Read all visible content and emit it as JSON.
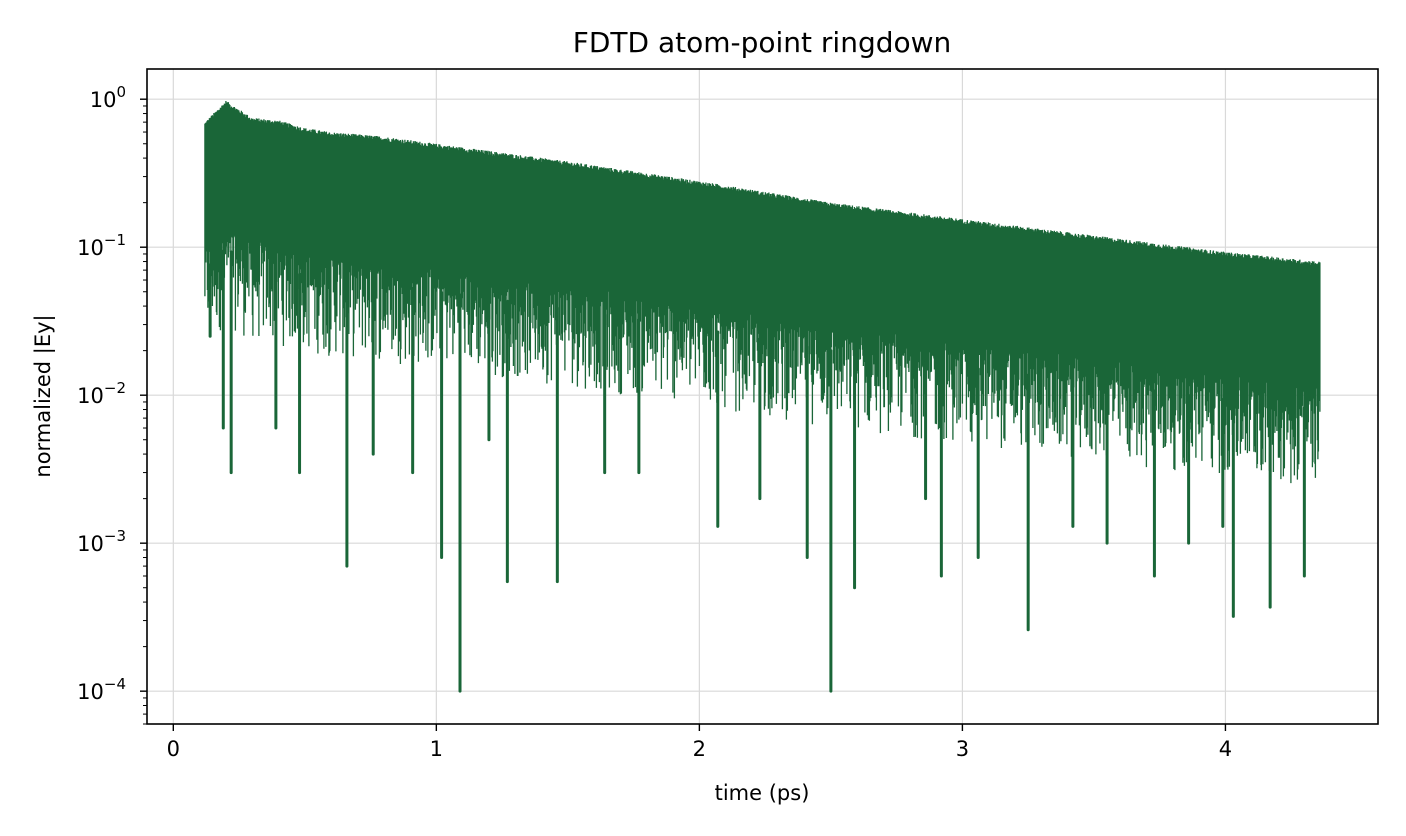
{
  "chart_data": {
    "type": "line",
    "title": "FDTD atom-point ringdown",
    "xlabel": "time (ps)",
    "ylabel": "normalized |Ey|",
    "yscale": "log",
    "xlim": [
      -0.1,
      4.58
    ],
    "ylim": [
      6e-05,
      1.6
    ],
    "grid": true,
    "x_ticks": [
      {
        "value": 0,
        "label": "0"
      },
      {
        "value": 1,
        "label": "1"
      },
      {
        "value": 2,
        "label": "2"
      },
      {
        "value": 3,
        "label": "3"
      },
      {
        "value": 4,
        "label": "4"
      }
    ],
    "y_ticks": [
      {
        "value": 1,
        "base": "10",
        "exponent": "0"
      },
      {
        "value": 0.1,
        "base": "10",
        "exponent": "−1"
      },
      {
        "value": 0.01,
        "base": "10",
        "exponent": "−2"
      },
      {
        "value": 0.001,
        "base": "10",
        "exponent": "−3"
      },
      {
        "value": 0.0001,
        "base": "10",
        "exponent": "−4"
      }
    ],
    "series": [
      {
        "color": "#1a6638",
        "envelope_x": [
          0.12,
          0.2,
          0.3,
          0.4,
          0.5,
          0.6,
          0.7,
          0.8,
          1.0,
          1.5,
          2.0,
          2.5,
          3.0,
          3.5,
          4.0,
          4.36
        ],
        "envelope_upper": [
          0.7,
          0.98,
          0.75,
          0.72,
          0.64,
          0.6,
          0.58,
          0.56,
          0.5,
          0.38,
          0.28,
          0.2,
          0.155,
          0.12,
          0.093,
          0.08
        ],
        "dips": [
          {
            "x": 0.14,
            "y": 0.025
          },
          {
            "x": 0.19,
            "y": 0.006
          },
          {
            "x": 0.22,
            "y": 0.003
          },
          {
            "x": 0.39,
            "y": 0.006
          },
          {
            "x": 0.48,
            "y": 0.003
          },
          {
            "x": 0.66,
            "y": 0.0007
          },
          {
            "x": 0.76,
            "y": 0.004
          },
          {
            "x": 0.91,
            "y": 0.003
          },
          {
            "x": 1.02,
            "y": 0.0008
          },
          {
            "x": 1.09,
            "y": 0.0001
          },
          {
            "x": 1.2,
            "y": 0.005
          },
          {
            "x": 1.27,
            "y": 0.00055
          },
          {
            "x": 1.46,
            "y": 0.00055
          },
          {
            "x": 1.64,
            "y": 0.003
          },
          {
            "x": 1.77,
            "y": 0.003
          },
          {
            "x": 2.07,
            "y": 0.0013
          },
          {
            "x": 2.23,
            "y": 0.002
          },
          {
            "x": 2.41,
            "y": 0.0008
          },
          {
            "x": 2.5,
            "y": 0.0001
          },
          {
            "x": 2.59,
            "y": 0.0005
          },
          {
            "x": 2.86,
            "y": 0.002
          },
          {
            "x": 2.92,
            "y": 0.0006
          },
          {
            "x": 3.06,
            "y": 0.0008
          },
          {
            "x": 3.25,
            "y": 0.00026
          },
          {
            "x": 3.42,
            "y": 0.0013
          },
          {
            "x": 3.55,
            "y": 0.001
          },
          {
            "x": 3.73,
            "y": 0.0006
          },
          {
            "x": 3.86,
            "y": 0.001
          },
          {
            "x": 3.99,
            "y": 0.0013
          },
          {
            "x": 4.03,
            "y": 0.00032
          },
          {
            "x": 4.17,
            "y": 0.00037
          },
          {
            "x": 4.3,
            "y": 0.0006
          }
        ]
      }
    ]
  }
}
